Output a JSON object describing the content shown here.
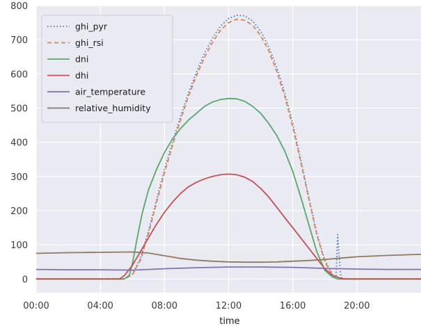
{
  "chart_data": {
    "type": "line",
    "title": "",
    "xlabel": "time",
    "ylabel": "",
    "grid": true,
    "legend_position": "top-left",
    "xlim": [
      0,
      24
    ],
    "ylim": [
      -40,
      800
    ],
    "x_ticks": [
      {
        "value": 0,
        "label": "00:00"
      },
      {
        "value": 4,
        "label": "04:00"
      },
      {
        "value": 8,
        "label": "08:00"
      },
      {
        "value": 12,
        "label": "12:00"
      },
      {
        "value": 16,
        "label": "16:00"
      },
      {
        "value": 20,
        "label": "20:00"
      }
    ],
    "y_ticks": [
      0,
      100,
      200,
      300,
      400,
      500,
      600,
      700,
      800
    ],
    "series": [
      {
        "name": "ghi_pyr",
        "color": "#4c72b0",
        "style": "dotted",
        "x": [
          0,
          5.5,
          6,
          6.5,
          7,
          7.5,
          8,
          8.5,
          9,
          9.5,
          10,
          10.5,
          11,
          11.5,
          12,
          12.5,
          13,
          13.5,
          14,
          14.5,
          15,
          15.5,
          16,
          16.5,
          17,
          17.5,
          18,
          18.5,
          18.7,
          18.8,
          18.9,
          19.0,
          19.1,
          24
        ],
        "values": [
          0,
          0,
          15,
          60,
          140,
          230,
          320,
          400,
          475,
          545,
          605,
          660,
          705,
          740,
          762,
          772,
          770,
          755,
          725,
          680,
          620,
          545,
          455,
          350,
          240,
          135,
          55,
          12,
          5,
          130,
          60,
          8,
          0,
          0
        ]
      },
      {
        "name": "ghi_rsi",
        "color": "#dd8452",
        "style": "dashed",
        "x": [
          0,
          5.5,
          6,
          6.5,
          7,
          7.5,
          8,
          8.5,
          9,
          9.5,
          10,
          10.5,
          11,
          11.5,
          12,
          12.5,
          13,
          13.5,
          14,
          14.5,
          15,
          15.5,
          16,
          16.5,
          17,
          17.5,
          18,
          18.5,
          19,
          24
        ],
        "values": [
          0,
          0,
          12,
          55,
          132,
          222,
          310,
          390,
          465,
          535,
          595,
          648,
          693,
          728,
          750,
          760,
          757,
          742,
          712,
          668,
          608,
          535,
          445,
          342,
          235,
          130,
          50,
          10,
          0,
          0
        ]
      },
      {
        "name": "dni",
        "color": "#55a868",
        "style": "solid",
        "x": [
          0,
          5.5,
          5.8,
          6,
          6.3,
          6.6,
          7,
          7.5,
          8,
          8.5,
          9,
          9.5,
          10,
          10.5,
          11,
          11.5,
          12,
          12.5,
          13,
          13.5,
          14,
          14.5,
          15,
          15.5,
          16,
          16.5,
          17,
          17.5,
          18,
          18.5,
          18.8,
          24
        ],
        "values": [
          0,
          0,
          10,
          45,
          120,
          190,
          260,
          320,
          370,
          410,
          440,
          465,
          485,
          505,
          518,
          525,
          528,
          527,
          520,
          505,
          485,
          455,
          420,
          375,
          315,
          240,
          160,
          80,
          25,
          5,
          0,
          0
        ]
      },
      {
        "name": "dhi",
        "color": "#c44e52",
        "style": "solid",
        "x": [
          0,
          5.2,
          5.5,
          6,
          6.5,
          7,
          7.5,
          8,
          8.5,
          9,
          9.5,
          10,
          10.5,
          11,
          11.5,
          12,
          12.5,
          13,
          13.5,
          14,
          14.5,
          15,
          15.5,
          16,
          16.5,
          17,
          17.5,
          18,
          18.5,
          19,
          19.3,
          24
        ],
        "values": [
          0,
          0,
          10,
          40,
          80,
          120,
          160,
          195,
          225,
          250,
          270,
          283,
          293,
          300,
          305,
          307,
          305,
          298,
          285,
          265,
          240,
          210,
          180,
          150,
          120,
          90,
          60,
          30,
          10,
          2,
          0,
          0
        ]
      },
      {
        "name": "air_temperature",
        "color": "#8172b3",
        "style": "solid",
        "x": [
          0,
          2,
          4,
          6,
          8,
          10,
          12,
          14,
          16,
          18,
          20,
          22,
          24
        ],
        "values": [
          28,
          27,
          27,
          26,
          30,
          33,
          35,
          35,
          34,
          31,
          29,
          28,
          28
        ]
      },
      {
        "name": "relative_humidity",
        "color": "#937860",
        "style": "solid",
        "x": [
          0,
          2,
          4,
          6,
          7,
          8,
          9,
          10,
          11,
          12,
          13,
          14,
          15,
          16,
          17,
          18,
          19,
          20,
          22,
          24
        ],
        "values": [
          75,
          77,
          78,
          79,
          76,
          68,
          60,
          55,
          52,
          50,
          49,
          49,
          50,
          52,
          54,
          57,
          61,
          65,
          69,
          72
        ]
      }
    ]
  }
}
